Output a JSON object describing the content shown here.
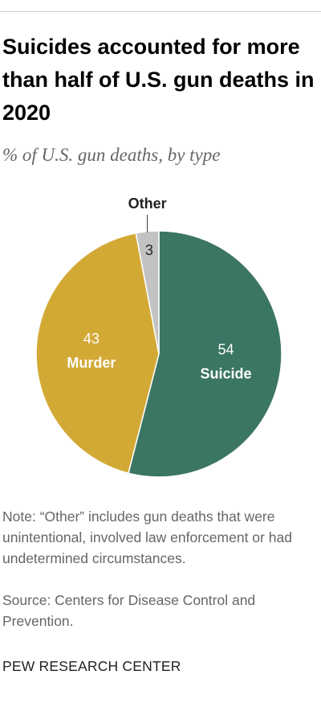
{
  "chart_data": {
    "type": "pie",
    "title": "Suicides accounted for more than half of U.S. gun deaths in 2020",
    "subtitle": "% of U.S. gun deaths, by type",
    "categories": [
      "Suicide",
      "Murder",
      "Other"
    ],
    "values": [
      54,
      43,
      3
    ],
    "colors": [
      "#3b7564",
      "#d3a935",
      "#c2c2c2"
    ],
    "note": "Note: “Other” includes gun deaths that were unintentional, involved law enforcement or had undetermined circumstances.",
    "source": "Source: Centers for Disease Control and Prevention.",
    "credit": "PEW RESEARCH CENTER"
  }
}
